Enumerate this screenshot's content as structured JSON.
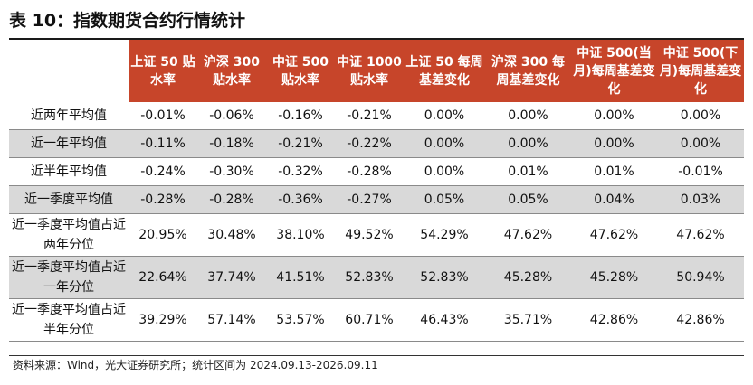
{
  "title": "表 10：指数期货合约行情统计",
  "columns": [
    "上证 50 贴水率",
    "沪深 300 贴水率",
    "中证 500 贴水率",
    "中证 1000 贴水率",
    "上证 50 每周基差变化",
    "沪深 300 每周基差变化",
    "中证 500(当月)每周基差变化",
    "中证 500(下月)每周基差变化"
  ],
  "rows": [
    {
      "label": "近两年平均值",
      "values": [
        "-0.01%",
        "-0.06%",
        "-0.16%",
        "-0.21%",
        "0.00%",
        "0.00%",
        "0.00%",
        "0.00%"
      ]
    },
    {
      "label": "近一年平均值",
      "values": [
        "-0.11%",
        "-0.18%",
        "-0.21%",
        "-0.22%",
        "0.00%",
        "0.00%",
        "0.00%",
        "0.00%"
      ]
    },
    {
      "label": "近半年平均值",
      "values": [
        "-0.24%",
        "-0.30%",
        "-0.32%",
        "-0.28%",
        "0.00%",
        "0.01%",
        "0.01%",
        "-0.01%"
      ]
    },
    {
      "label": "近一季度平均值",
      "values": [
        "-0.28%",
        "-0.28%",
        "-0.36%",
        "-0.27%",
        "0.05%",
        "0.05%",
        "0.04%",
        "0.03%"
      ]
    },
    {
      "label": "近一季度平均值占近两年分位",
      "values": [
        "20.95%",
        "30.48%",
        "38.10%",
        "49.52%",
        "54.29%",
        "47.62%",
        "47.62%",
        "47.62%"
      ]
    },
    {
      "label": "近一季度平均值占近一年分位",
      "values": [
        "22.64%",
        "37.74%",
        "41.51%",
        "52.83%",
        "52.83%",
        "45.28%",
        "45.28%",
        "50.94%"
      ]
    },
    {
      "label": "近一季度平均值占近半年分位",
      "values": [
        "39.29%",
        "57.14%",
        "53.57%",
        "60.71%",
        "46.43%",
        "35.71%",
        "42.86%",
        "42.86%"
      ]
    }
  ],
  "source": "资料来源：Wind，光大证券研究所；统计区间为 2024.09.13-2026.09.11"
}
